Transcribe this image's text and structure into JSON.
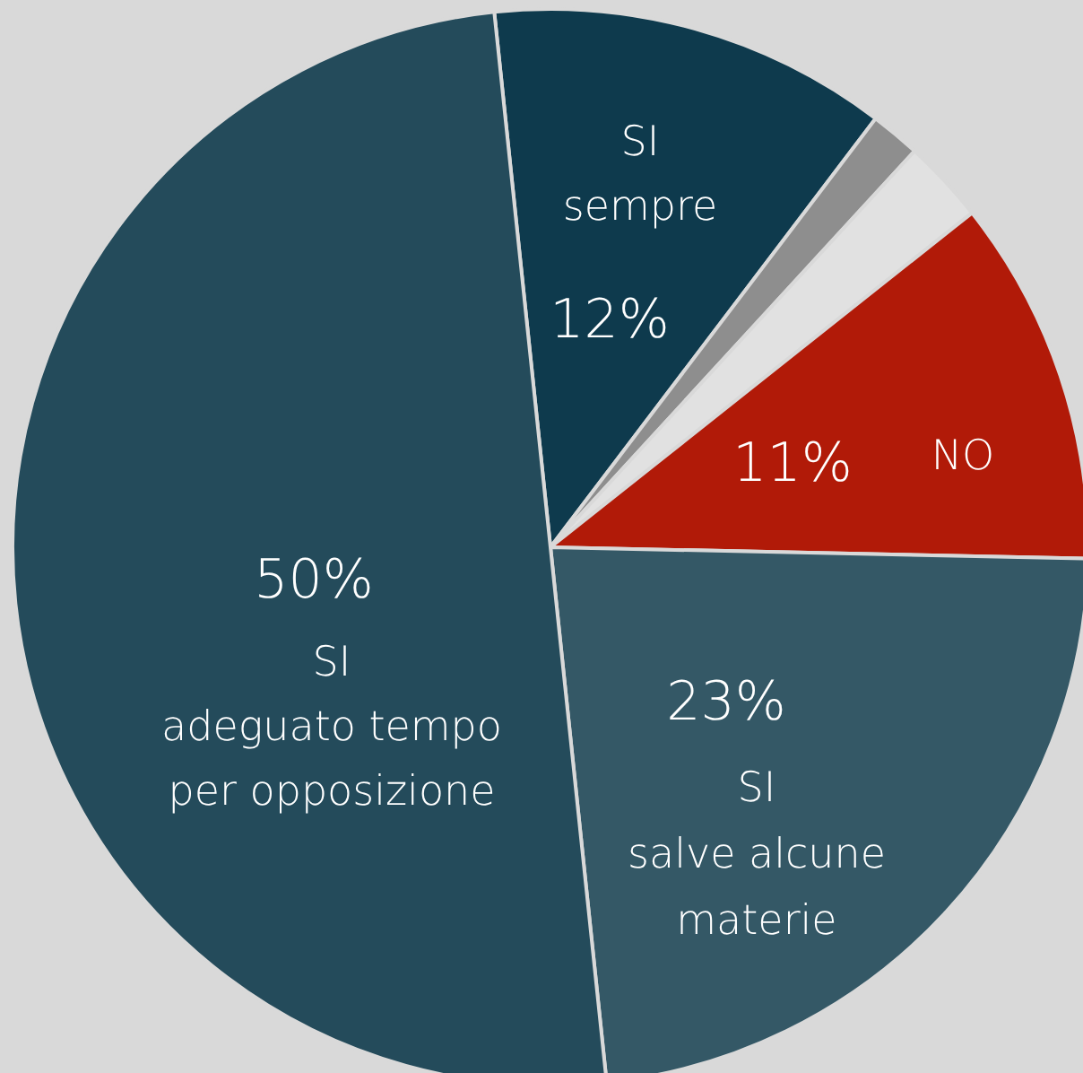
{
  "chart_data": {
    "type": "pie",
    "categories": [
      "SI\nsempre",
      null,
      null,
      "NO",
      "SI\nsalve alcune\nmaterie",
      "SI\nadeguato tempo\nper opposizione"
    ],
    "values": [
      12,
      1.5,
      2.5,
      11,
      23,
      50
    ],
    "value_labels": [
      "12%",
      null,
      null,
      "11%",
      "23%",
      "50%"
    ],
    "colors": [
      "#0e3a4d",
      "#8e8e8e",
      "#e1e1e1",
      "#b11a08",
      "#345866",
      "#244b5b"
    ],
    "legend": false
  }
}
